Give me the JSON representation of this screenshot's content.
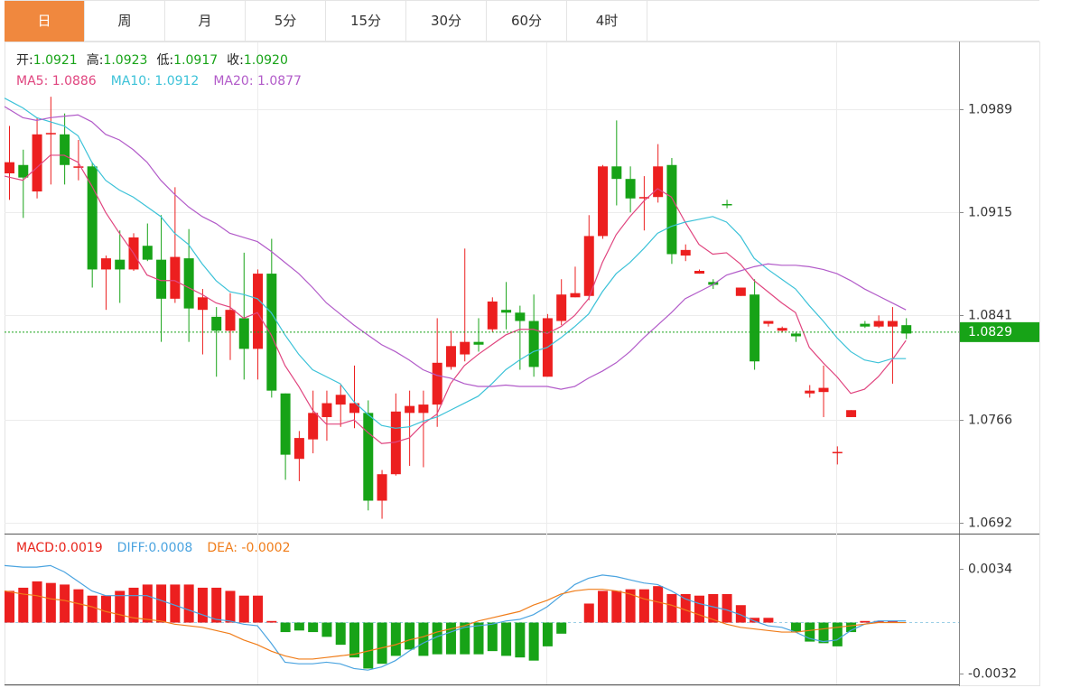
{
  "tabs": [
    "日",
    "周",
    "月",
    "5分",
    "15分",
    "30分",
    "60分",
    "4时"
  ],
  "chart_data": [
    {
      "type": "candlestick",
      "info": [
        {
          "label": "开:",
          "value": "1.0921"
        },
        {
          "label": "高:",
          "value": "1.0923"
        },
        {
          "label": "低:",
          "value": "1.0917"
        },
        {
          "label": "收:",
          "value": "1.0920"
        }
      ],
      "up_color": "#ec1f1f",
      "down_color": "#17a317",
      "open": [
        1.0943,
        1.0949,
        1.093,
        1.0971,
        1.0971,
        1.0947,
        1.0948,
        1.0874,
        1.0881,
        1.0874,
        1.0891,
        1.0881,
        1.0853,
        1.0882,
        1.0845,
        1.084,
        1.083,
        1.0839,
        1.0817,
        1.0871,
        1.0785,
        1.0738,
        1.0752,
        1.0768,
        1.0777,
        1.0771,
        1.0771,
        1.0708,
        1.0727,
        1.0771,
        1.0771,
        1.0777,
        1.0804,
        1.0813,
        1.0822,
        1.0831,
        1.0845,
        1.0843,
        1.0837,
        1.0797,
        1.0837,
        1.0854,
        1.0855,
        1.0898,
        1.0948,
        1.0939,
        1.0925,
        1.0926,
        1.0949,
        1.0884,
        1.0871,
        1.0865,
        1.0921,
        1.0855,
        1.0856,
        1.0835,
        1.083,
        1.0828,
        1.0785,
        1.0786,
        1.0742,
        1.0768,
        1.0835,
        1.0833,
        1.0833,
        1.0834
      ],
      "high": [
        1.0977,
        1.096,
        1.0983,
        1.0998,
        1.0986,
        1.0967,
        1.0951,
        1.0884,
        1.0902,
        1.09,
        1.0907,
        1.0913,
        1.0933,
        1.0903,
        1.086,
        1.0847,
        1.0857,
        1.0886,
        1.0874,
        1.0896,
        1.0785,
        1.0758,
        1.0787,
        1.0787,
        1.0791,
        1.0805,
        1.078,
        1.073,
        1.0785,
        1.0787,
        1.0787,
        1.0839,
        1.083,
        1.0889,
        1.0839,
        1.0854,
        1.0865,
        1.0848,
        1.0856,
        1.0842,
        1.0867,
        1.0876,
        1.0913,
        1.0949,
        1.0981,
        1.0948,
        1.0941,
        1.0964,
        1.0954,
        1.0892,
        1.0874,
        1.0867,
        1.0924,
        1.0861,
        1.0867,
        1.0837,
        1.0833,
        1.0829,
        1.0791,
        1.0805,
        1.0747,
        1.0773,
        1.0837,
        1.0841,
        1.0847,
        1.0839
      ],
      "low": [
        1.0924,
        1.0911,
        1.0925,
        1.0935,
        1.0935,
        1.0938,
        1.0861,
        1.0845,
        1.085,
        1.0873,
        1.088,
        1.0822,
        1.085,
        1.0822,
        1.0813,
        1.0797,
        1.0809,
        1.0795,
        1.0795,
        1.0782,
        1.0723,
        1.0722,
        1.0742,
        1.0751,
        1.0761,
        1.076,
        1.0701,
        1.0695,
        1.0726,
        1.0733,
        1.0732,
        1.0761,
        1.0802,
        1.0808,
        1.0815,
        1.0829,
        1.0831,
        1.0802,
        1.0797,
        1.0797,
        1.0834,
        1.0854,
        1.0852,
        1.0896,
        1.092,
        1.0915,
        1.0902,
        1.0922,
        1.0878,
        1.088,
        1.0871,
        1.086,
        1.0918,
        1.0855,
        1.0802,
        1.0833,
        1.0829,
        1.0822,
        1.0782,
        1.0768,
        1.0734,
        1.0768,
        1.0832,
        1.0832,
        1.0792,
        1.0824
      ],
      "close": [
        1.0951,
        1.094,
        1.0971,
        1.0972,
        1.0949,
        1.0948,
        1.0874,
        1.0882,
        1.0874,
        1.0897,
        1.0881,
        1.0853,
        1.0883,
        1.0846,
        1.0854,
        1.083,
        1.0845,
        1.0817,
        1.0871,
        1.0787,
        1.0741,
        1.0753,
        1.0771,
        1.0778,
        1.0784,
        1.0778,
        1.0708,
        1.0727,
        1.0772,
        1.0776,
        1.0777,
        1.0807,
        1.0819,
        1.0822,
        1.082,
        1.0851,
        1.0843,
        1.0837,
        1.0804,
        1.0839,
        1.0856,
        1.0857,
        1.0898,
        1.0948,
        1.0939,
        1.0925,
        1.0926,
        1.0948,
        1.0885,
        1.0888,
        1.0873,
        1.0863,
        1.092,
        1.0861,
        1.0808,
        1.0837,
        1.0832,
        1.0826,
        1.0787,
        1.0789,
        1.0743,
        1.0773,
        1.0833,
        1.0837,
        1.0837,
        1.0828
      ],
      "series": [
        {
          "name": "MA5: 1.0886",
          "color": "#e0457f",
          "values": [
            1.0941,
            1.0938,
            1.0947,
            1.0956,
            1.0956,
            1.0951,
            1.0934,
            1.0915,
            1.09,
            1.0886,
            1.087,
            1.0866,
            1.0866,
            1.0861,
            1.0856,
            1.085,
            1.0847,
            1.0839,
            1.0843,
            1.0827,
            1.0805,
            1.079,
            1.0773,
            1.0763,
            1.0763,
            1.0766,
            1.0757,
            1.0749,
            1.075,
            1.0753,
            1.0763,
            1.077,
            1.0792,
            1.0805,
            1.0813,
            1.082,
            1.0827,
            1.0831,
            1.0831,
            1.0828,
            1.0833,
            1.0841,
            1.0853,
            1.0879,
            1.0899,
            1.0912,
            1.0923,
            1.0932,
            1.0926,
            1.0908,
            1.0892,
            1.0885,
            1.0886,
            1.0878,
            1.0866,
            1.0858,
            1.085,
            1.0843,
            1.0818,
            1.0807,
            1.0797,
            1.0785,
            1.0788,
            1.0797,
            1.0809,
            1.0823
          ]
        },
        {
          "name": "MA10: 1.0912",
          "color": "#3cc2d8",
          "values": [
            1.0997,
            1.099,
            1.0983,
            1.098,
            1.0977,
            1.097,
            1.0951,
            1.0938,
            1.0931,
            1.0926,
            1.0919,
            1.0912,
            1.09,
            1.0892,
            1.0878,
            1.0866,
            1.0858,
            1.0856,
            1.0853,
            1.0843,
            1.0827,
            1.0813,
            1.0802,
            1.0797,
            1.0792,
            1.0779,
            1.077,
            1.0762,
            1.076,
            1.0761,
            1.0765,
            1.0768,
            1.0773,
            1.0778,
            1.0783,
            1.0792,
            1.0802,
            1.0809,
            1.0815,
            1.0818,
            1.0825,
            1.0833,
            1.0842,
            1.0858,
            1.0871,
            1.0879,
            1.0889,
            1.09,
            1.0905,
            1.0908,
            1.091,
            1.0912,
            1.0908,
            1.0898,
            1.0882,
            1.0874,
            1.0867,
            1.086,
            1.0848,
            1.0837,
            1.0825,
            1.0815,
            1.0809,
            1.0807,
            1.081,
            1.081
          ]
        },
        {
          "name": "MA20: 1.0877",
          "color": "#b25bc9",
          "values": [
            1.0991,
            1.0983,
            1.0981,
            1.0983,
            1.0984,
            1.0985,
            1.098,
            1.0971,
            1.0967,
            1.096,
            1.0951,
            1.0938,
            1.0928,
            1.0919,
            1.0912,
            1.0907,
            1.09,
            1.0897,
            1.0894,
            1.0887,
            1.0879,
            1.0871,
            1.0861,
            1.085,
            1.0842,
            1.0834,
            1.0827,
            1.082,
            1.0815,
            1.0809,
            1.0802,
            1.0798,
            1.0796,
            1.0792,
            1.079,
            1.079,
            1.0791,
            1.079,
            1.079,
            1.079,
            1.0788,
            1.079,
            1.0796,
            1.0801,
            1.0807,
            1.0815,
            1.0825,
            1.0834,
            1.0843,
            1.0853,
            1.0858,
            1.0863,
            1.087,
            1.0873,
            1.0876,
            1.0878,
            1.0877,
            1.0877,
            1.0876,
            1.0874,
            1.0871,
            1.0866,
            1.086,
            1.0855,
            1.085,
            1.0845
          ]
        }
      ],
      "last_price": 1.0829,
      "last_price_color": "#17a317",
      "ylim": [
        1.0685,
        1.1037
      ],
      "yticks": [
        1.0989,
        1.0915,
        1.0841,
        1.0766,
        1.0692
      ],
      "grid": true
    },
    {
      "type": "macd",
      "up_color": "#ec1f1f",
      "down_color": "#17a317",
      "histogram": {
        "name": "MACD:0.0019",
        "color": "#e8231a",
        "values": [
          0.002,
          0.0022,
          0.0026,
          0.0025,
          0.0024,
          0.0021,
          0.0017,
          0.0017,
          0.002,
          0.0022,
          0.0024,
          0.0024,
          0.0024,
          0.0024,
          0.0022,
          0.0022,
          0.002,
          0.0017,
          0.0017,
          0.0001,
          -0.0006,
          -0.0005,
          -0.0006,
          -0.0009,
          -0.0014,
          -0.0022,
          -0.0029,
          -0.0026,
          -0.0021,
          -0.0017,
          -0.0021,
          -0.002,
          -0.002,
          -0.002,
          -0.002,
          -0.0018,
          -0.0021,
          -0.0022,
          -0.0024,
          -0.0015,
          -0.0007,
          0,
          0.0012,
          0.002,
          0.002,
          0.0021,
          0.0021,
          0.0023,
          0.0018,
          0.0018,
          0.0017,
          0.0018,
          0.0018,
          0.0011,
          0.0003,
          0.0003,
          0,
          -0.0006,
          -0.0012,
          -0.0013,
          -0.0015,
          -0.0006,
          0.0001,
          0.0001,
          0.0001,
          0
        ]
      },
      "series": [
        {
          "name": "DIFF:0.0008",
          "color": "#4ba4e0",
          "values": [
            0.0036,
            0.0035,
            0.0035,
            0.0036,
            0.0032,
            0.0026,
            0.002,
            0.0017,
            0.0017,
            0.0017,
            0.0017,
            0.0014,
            0.0011,
            0.0008,
            0.0005,
            0.0002,
            0.0001,
            -0.0001,
            -0.0002,
            -0.0013,
            -0.0025,
            -0.0026,
            -0.0026,
            -0.0025,
            -0.0026,
            -0.0029,
            -0.003,
            -0.0028,
            -0.0024,
            -0.0018,
            -0.0013,
            -0.0009,
            -0.0006,
            -0.0003,
            -0.0002,
            -0.0001,
            0.0001,
            0.0002,
            0.0005,
            0.001,
            0.0017,
            0.0024,
            0.0028,
            0.003,
            0.0029,
            0.0027,
            0.0025,
            0.0024,
            0.002,
            0.0015,
            0.0012,
            0.001,
            0.0008,
            0.0005,
            0.0001,
            -0.0002,
            -0.0003,
            -0.0006,
            -0.001,
            -0.0012,
            -0.0011,
            -0.0005,
            -0.0001,
            0.0001,
            0.0001,
            0.0001
          ]
        },
        {
          "name": "DEA: -0.0002",
          "color": "#f07d1a",
          "values": [
            0.002,
            0.0018,
            0.0017,
            0.0015,
            0.0014,
            0.0012,
            0.001,
            0.0007,
            0.0005,
            0.0003,
            0.0002,
            0.0001,
            -0.0001,
            -0.0002,
            -0.0003,
            -0.0005,
            -0.0007,
            -0.0011,
            -0.0014,
            -0.0018,
            -0.0021,
            -0.0023,
            -0.0023,
            -0.0022,
            -0.0021,
            -0.002,
            -0.0018,
            -0.0016,
            -0.0014,
            -0.0011,
            -0.0009,
            -0.0006,
            -0.0004,
            -0.0002,
            0.0001,
            0.0003,
            0.0005,
            0.0007,
            0.0011,
            0.0014,
            0.0018,
            0.002,
            0.0021,
            0.0021,
            0.002,
            0.0018,
            0.0015,
            0.0013,
            0.0011,
            0.0008,
            0.0005,
            0.0002,
            -0.0001,
            -0.0003,
            -0.0004,
            -0.0005,
            -0.0006,
            -0.0006,
            -0.0005,
            -0.0004,
            -0.0003,
            -0.0002,
            -0.0001,
            0,
            0,
            0
          ]
        }
      ],
      "ylim": [
        -0.0039,
        0.0055
      ],
      "yticks": [
        0.0034,
        -0.0032
      ]
    }
  ]
}
